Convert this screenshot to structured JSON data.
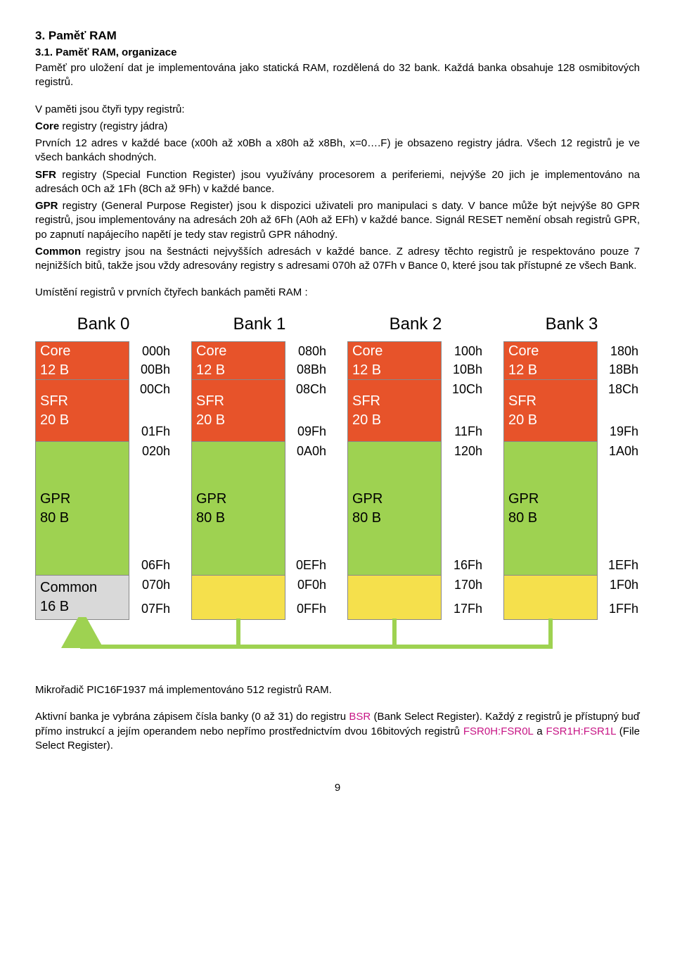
{
  "heading": "3. Paměť RAM",
  "subheading": "3.1. Paměť RAM, organizace",
  "para1": "Paměť pro uložení dat je implementována jako statická RAM, rozdělená do 32 bank. Každá banka obsahuje 128 osmibitových registrů.",
  "para2_intro": "V paměti jsou čtyři typy registrů:",
  "core_lbl": "Core",
  "core_txt": " registry (registry jádra)",
  "core_desc": "Prvních 12 adres v každé bace (x00h až x0Bh  a x80h až x8Bh, x=0….F) je obsazeno registry jádra. Všech 12 registrů je ve všech bankách shodných.",
  "sfr_lbl": "SFR",
  "sfr_txt": " registry (Special Function Register) jsou využívány procesorem a periferiemi, nejvýše 20 jich je implementováno na adresách 0Ch až 1Fh (8Ch až 9Fh) v každé bance.",
  "gpr_lbl": "GPR",
  "gpr_txt": " registry (General Purpose Register) jsou k dispozici uživateli pro manipulaci s daty. V bance může být nejvýše 80 GPR registrů, jsou implementovány na adresách 20h až 6Fh (A0h až EFh) v každé bance. Signál RESET nemění obsah registrů GPR, po zapnutí napájecího napětí je tedy stav registrů GPR náhodný.",
  "common_lbl": "Common",
  "common_txt": " registry jsou na šestnácti nejvyšších adresách v každé bance. Z adresy těchto registrů je respektováno pouze 7 nejnižších bitů, takže jsou vždy adresovány registry s adresami 070h až 07Fh v Bance 0, které jsou tak přístupné ze všech Bank.",
  "caption": "Umístění registrů v prvních čtyřech bankách paměti RAM :",
  "footer1": "Mikrořadič PIC16F1937 má implementováno 512 registrů RAM.",
  "footer2a": "Aktivní banka je vybrána zápisem čísla banky (0 až 31) do registru ",
  "bsr": "BSR",
  "footer2b": " (Bank Select Register). Každý z registrů je přístupný buď přímo instrukcí a jejím operandem nebo nepřímo prostřednictvím dvou 16bitových registrů ",
  "fsr0": "FSR0H:FSR0L",
  "and": " a ",
  "fsr1": "FSR1H:FSR1L",
  "footer2c": " (File Select Register).",
  "pagenum": "9",
  "diagram": {
    "colors": {
      "core": "#e7532a",
      "sfr": "#e7532a",
      "gpr": "#9ed251",
      "common0": "#d9d9d9",
      "common_other": "#f5e04c",
      "core_text": "#ffffff",
      "sfr_text": "#ffffff",
      "gpr_text": "#000000",
      "common_text": "#000000",
      "arrow": "#9ed251"
    },
    "heights": {
      "core": 54,
      "sfr": 88,
      "gpr": 190,
      "common": 62
    },
    "banks": [
      {
        "title": "Bank 0",
        "segs": [
          {
            "l1": "Core",
            "l2": "12 B",
            "k": "core",
            "a_top": "000h",
            "a_bot": "00Bh"
          },
          {
            "l1": "SFR",
            "l2": "20 B",
            "k": "sfr",
            "a_top": "00Ch",
            "a_bot": "01Fh"
          },
          {
            "l1": "GPR",
            "l2": "80 B",
            "k": "gpr",
            "a_top": "020h",
            "a_bot": "06Fh"
          },
          {
            "l1": "Common",
            "l2": "16 B",
            "k": "common0",
            "a_top": "070h",
            "a_bot": "07Fh"
          }
        ]
      },
      {
        "title": "Bank 1",
        "segs": [
          {
            "l1": "Core",
            "l2": "12 B",
            "k": "core",
            "a_top": "080h",
            "a_bot": "08Bh"
          },
          {
            "l1": "SFR",
            "l2": "20 B",
            "k": "sfr",
            "a_top": "08Ch",
            "a_bot": "09Fh"
          },
          {
            "l1": "GPR",
            "l2": "80 B",
            "k": "gpr",
            "a_top": "0A0h",
            "a_bot": "0EFh"
          },
          {
            "l1": "",
            "l2": "",
            "k": "common_other",
            "a_top": "0F0h",
            "a_bot": "0FFh"
          }
        ]
      },
      {
        "title": "Bank 2",
        "segs": [
          {
            "l1": "Core",
            "l2": "12 B",
            "k": "core",
            "a_top": "100h",
            "a_bot": "10Bh"
          },
          {
            "l1": "SFR",
            "l2": "20 B",
            "k": "sfr",
            "a_top": "10Ch",
            "a_bot": "11Fh"
          },
          {
            "l1": "GPR",
            "l2": "80 B",
            "k": "gpr",
            "a_top": "120h",
            "a_bot": "16Fh"
          },
          {
            "l1": "",
            "l2": "",
            "k": "common_other",
            "a_top": "170h",
            "a_bot": "17Fh"
          }
        ]
      },
      {
        "title": "Bank 3",
        "segs": [
          {
            "l1": "Core",
            "l2": "12 B",
            "k": "core",
            "a_top": "180h",
            "a_bot": "18Bh"
          },
          {
            "l1": "SFR",
            "l2": "20 B",
            "k": "sfr",
            "a_top": "18Ch",
            "a_bot": "19Fh"
          },
          {
            "l1": "GPR",
            "l2": "80 B",
            "k": "gpr",
            "a_top": "1A0h",
            "a_bot": "1EFh"
          },
          {
            "l1": "",
            "l2": "",
            "k": "common_other",
            "a_top": "1F0h",
            "a_bot": "1FFh"
          }
        ]
      }
    ]
  }
}
